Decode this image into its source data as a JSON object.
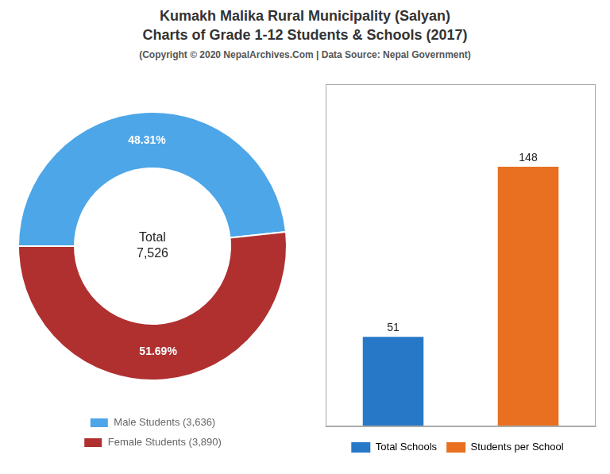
{
  "title": [
    "Kumakh Malika Rural Municipality (Salyan)",
    "Charts of Grade 1-12 Students & Schools (2017)"
  ],
  "subtitle": "(Copyright © 2020 NepalArchives.Com | Data Source: Nepal Government)",
  "chart_data": [
    {
      "type": "doughnut",
      "categories": [
        "Male Students (3,636)",
        "Female Students (3,890)"
      ],
      "values": [
        48.31,
        51.69
      ],
      "value_labels": [
        "48.31%",
        "51.69%"
      ],
      "colors": [
        "#4da6e8",
        "#b03030"
      ],
      "annotation": "Total\n7,526",
      "data_labels": true,
      "legend": "bottom"
    },
    {
      "type": "bar",
      "categories": [
        "Total Schools",
        "Students per School"
      ],
      "values": [
        51,
        148
      ],
      "colors": [
        "#2878c8",
        "#e87020"
      ],
      "ylim": [
        0,
        195
      ],
      "tick_labels": false,
      "grid": false,
      "data_labels": true,
      "legend": "bottom"
    }
  ]
}
